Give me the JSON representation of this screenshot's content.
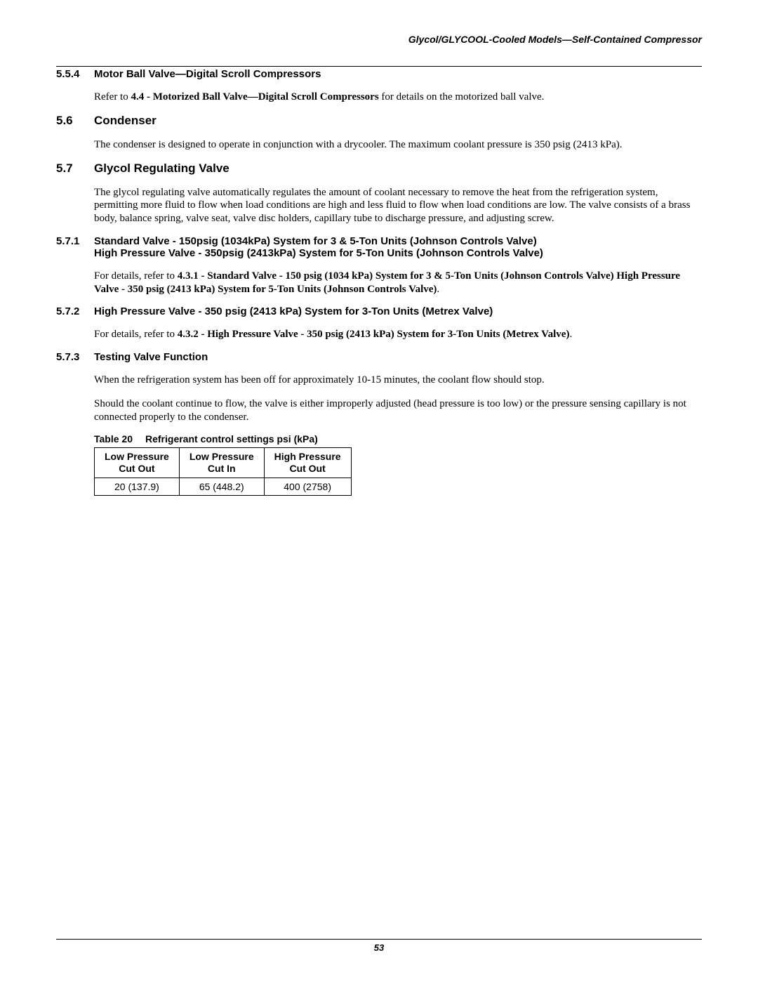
{
  "running_header": "Glycol/GLYCOOL-Cooled Models—Self-Contained Compressor",
  "page_number": "53",
  "s554": {
    "num": "5.5.4",
    "title": "Motor Ball Valve—Digital Scroll Compressors",
    "p1a": "Refer to ",
    "p1b": "4.4 - Motorized Ball Valve—Digital Scroll Compressors",
    "p1c": " for details on the motorized ball valve."
  },
  "s56": {
    "num": "5.6",
    "title": "Condenser",
    "p1": "The condenser is designed to operate in conjunction with a drycooler. The maximum coolant pressure is 350 psig (2413 kPa)."
  },
  "s57": {
    "num": "5.7",
    "title": "Glycol Regulating Valve",
    "p1": "The glycol regulating valve automatically regulates the amount of coolant necessary to remove the heat from the refrigeration system, permitting more fluid to flow when load conditions are high and less fluid to flow when load conditions are low. The valve consists of a brass body, balance spring, valve seat, valve disc holders, capillary tube to discharge pressure, and adjusting screw."
  },
  "s571": {
    "num": "5.7.1",
    "title_l1": "Standard Valve - 150psig (1034kPa) System for 3 & 5-Ton Units (Johnson Controls Valve)",
    "title_l2": "High Pressure Valve - 350psig (2413kPa) System for 5-Ton Units (Johnson Controls Valve)",
    "p1a": "For details, refer to ",
    "p1b": "4.3.1 - Standard Valve - 150 psig (1034 kPa) System for 3 & 5-Ton Units (Johnson Controls Valve) High Pressure Valve - 350 psig (2413 kPa) System for 5-Ton Units (Johnson Controls Valve)",
    "p1c": "."
  },
  "s572": {
    "num": "5.7.2",
    "title": "High Pressure Valve - 350 psig (2413 kPa) System for 3-Ton Units (Metrex Valve)",
    "p1a": "For details, refer to ",
    "p1b": "4.3.2 - High Pressure Valve - 350 psig (2413 kPa) System for 3-Ton Units (Metrex Valve)",
    "p1c": "."
  },
  "s573": {
    "num": "5.7.3",
    "title": "Testing Valve Function",
    "p1": "When the refrigeration system has been off for approximately 10-15 minutes, the coolant flow should stop.",
    "p2": "Should the coolant continue to flow, the valve is either improperly adjusted (head pressure is too low) or the pressure sensing capillary is not connected properly to the condenser."
  },
  "table20": {
    "label": "Table 20",
    "caption": "Refrigerant control settings psi (kPa)",
    "headers": {
      "c1l1": "Low Pressure",
      "c1l2": "Cut Out",
      "c2l1": "Low Pressure",
      "c2l2": "Cut In",
      "c3l1": "High Pressure",
      "c3l2": "Cut Out"
    },
    "row1": {
      "c1": "20 (137.9)",
      "c2": "65 (448.2)",
      "c3": "400 (2758)"
    }
  }
}
